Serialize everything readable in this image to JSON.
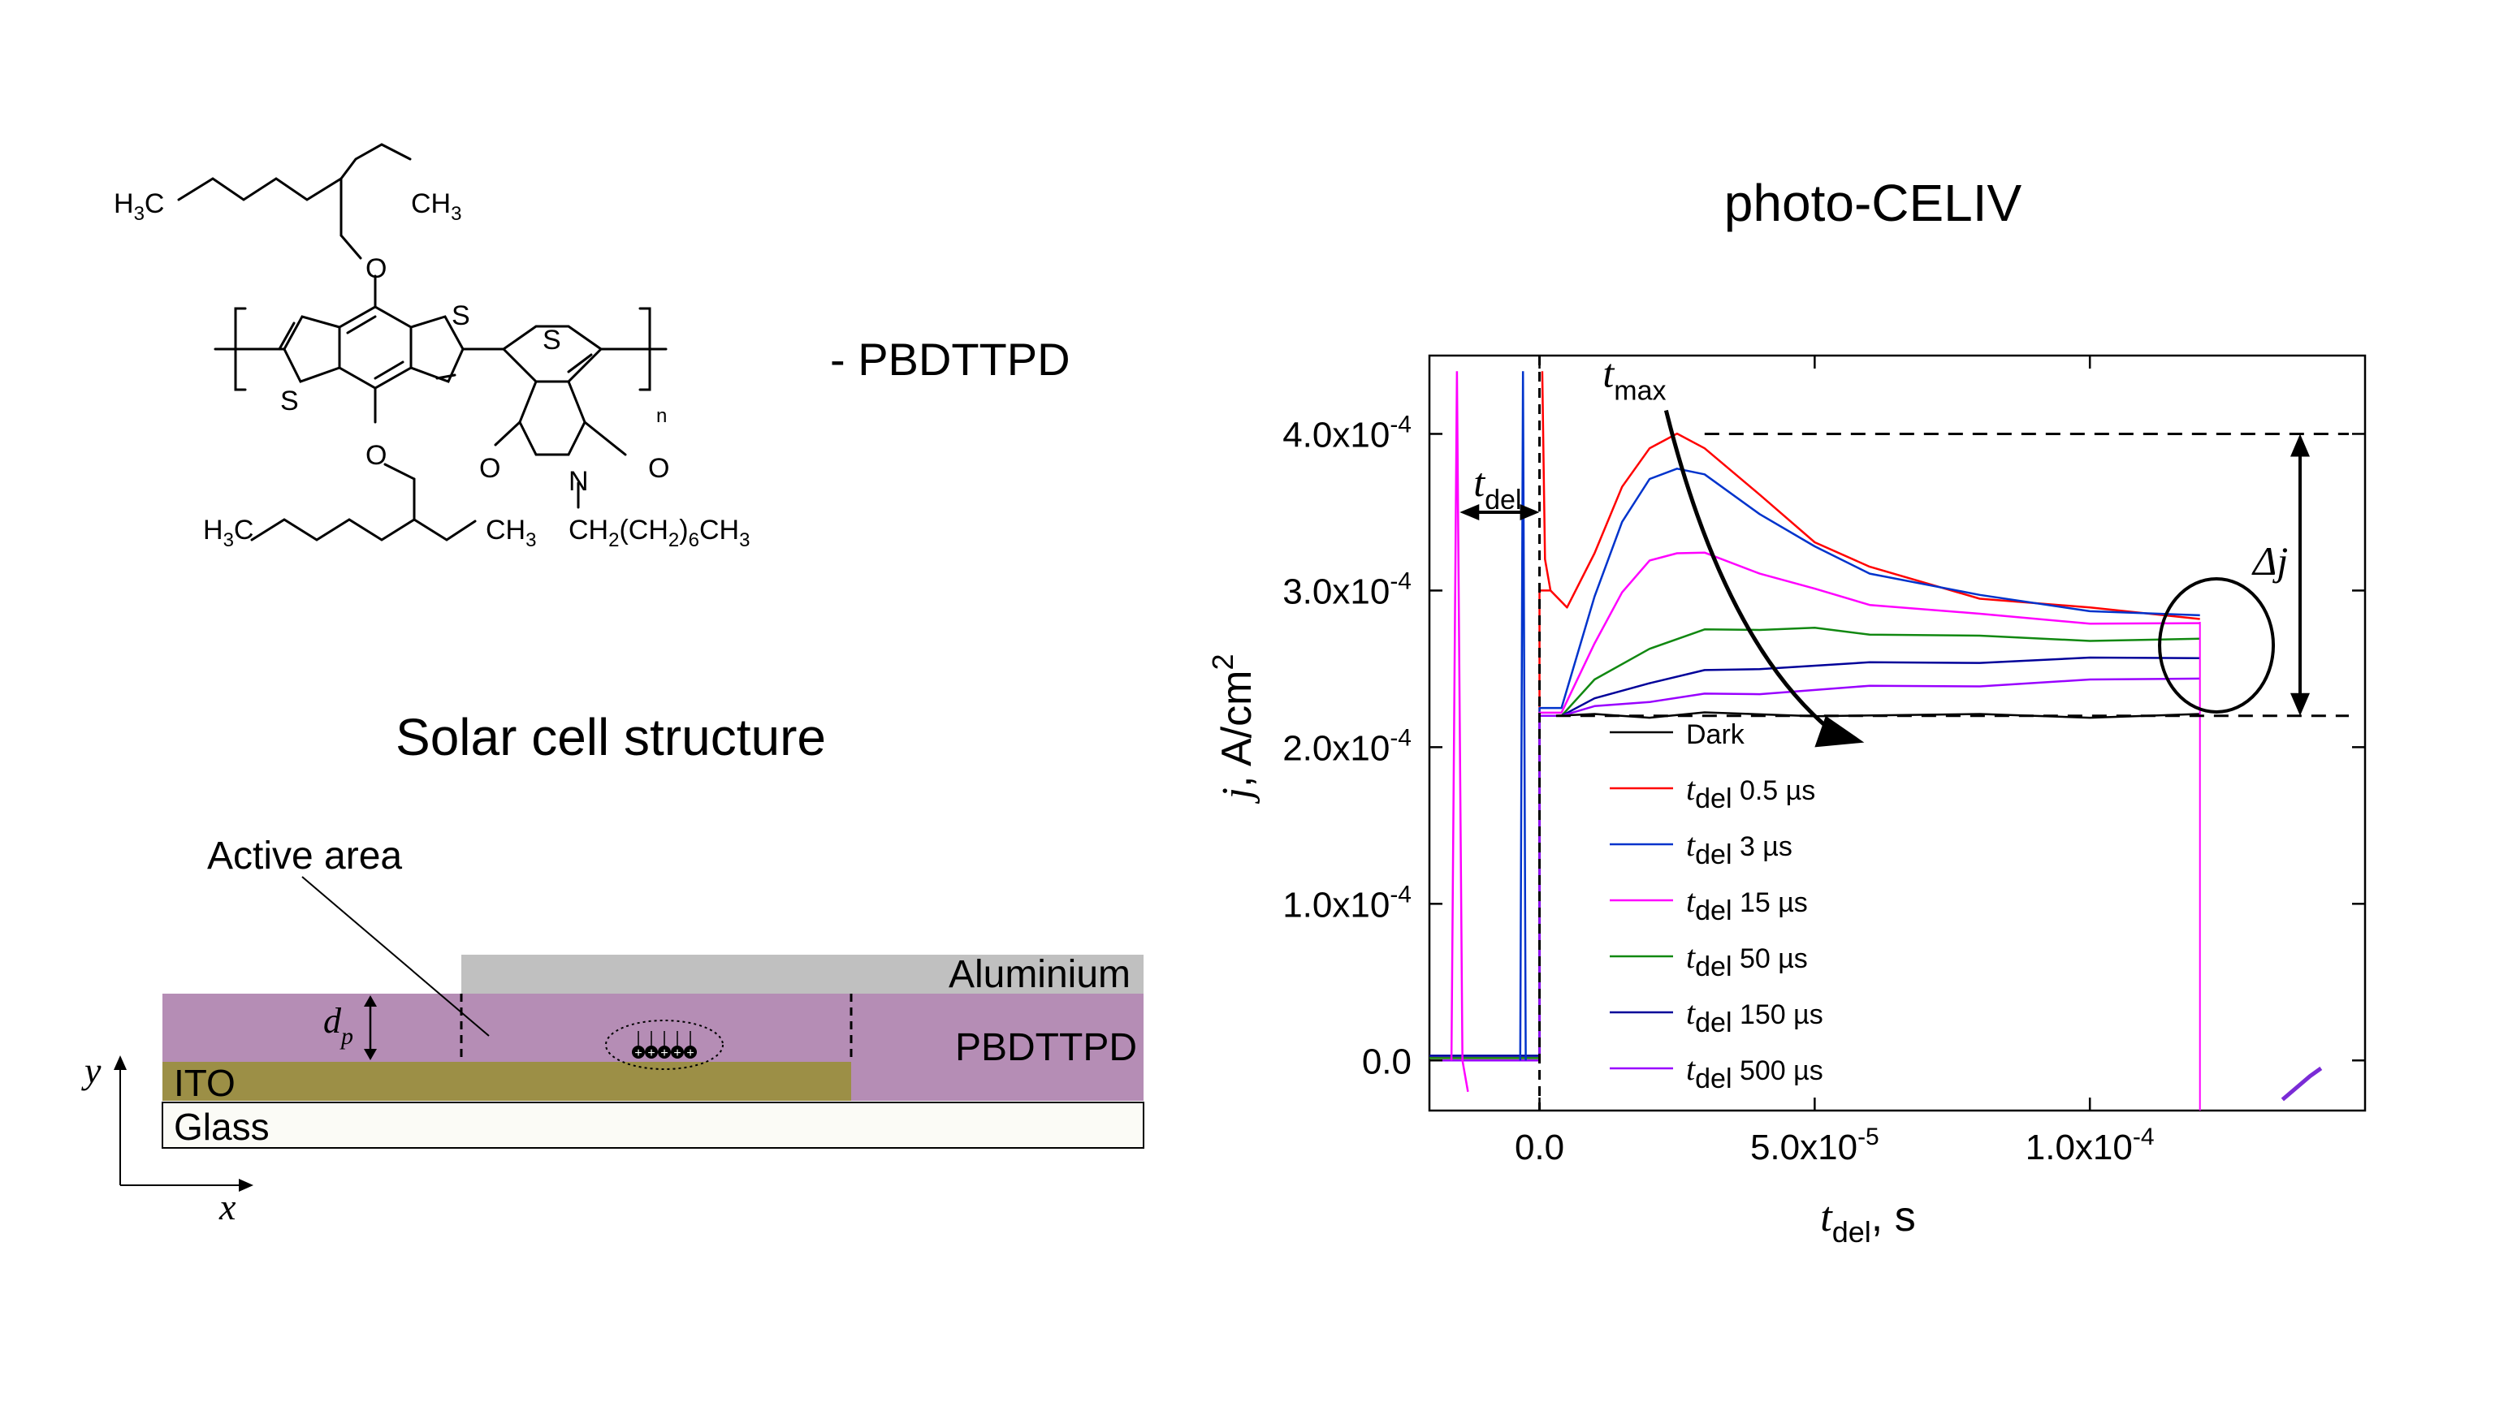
{
  "molecule": {
    "name": "- PBDTTPD",
    "atoms": {
      "o_top": "O",
      "o_bottom": "O",
      "s_right_ring": "S",
      "s_left_ring": "S",
      "s_thiophene": "S",
      "o_imide_left": "O",
      "o_imide_right": "O",
      "n_imide": "N",
      "subscript_n": "n"
    },
    "groups": {
      "top_left": {
        "main": "H",
        "sub": "3",
        "rest": "C"
      },
      "top_right": {
        "main": "CH",
        "sub": "3"
      },
      "bottom_left": {
        "main": "H",
        "sub": "3",
        "rest": "C"
      },
      "bottom_right": {
        "main": "CH",
        "sub": "3"
      },
      "n_chain": {
        "p1": "CH",
        "s1": "2",
        "p2": "(CH",
        "s2": "2",
        "p3": ")",
        "s3": "6",
        "p4": "CH",
        "s4": "3"
      }
    }
  },
  "structure": {
    "title": "Solar cell structure",
    "active_area_label": "Active area",
    "layers": {
      "aluminium": "Aluminium",
      "pbdttpd": "PBDTTPD",
      "ito": "ITO",
      "glass": "Glass"
    },
    "thickness_label": {
      "main": "d",
      "sub": "p"
    },
    "axis_y": "y",
    "axis_x": "x",
    "charges": [
      "+",
      "+",
      "+",
      "+",
      "+"
    ],
    "colors": {
      "aluminium": "#c0c0c0",
      "pbdttpd": "#b58db5",
      "ito": "#9c8f46",
      "glass": "#fbfbf6"
    }
  },
  "chart_data": {
    "type": "line",
    "title": "photo-CELIV",
    "xlabel": {
      "main": "t",
      "sub": "del",
      "rest": ", s"
    },
    "ylabel": {
      "main": "j",
      "rest": ", A/cm",
      "sup": "2"
    },
    "xlim": [
      -2e-05,
      0.00015
    ],
    "ylim": [
      -3.2e-05,
      0.00045
    ],
    "x_ticks": [
      {
        "value": 0,
        "label": "0.0"
      },
      {
        "value": 5e-05,
        "label": "5.0x10",
        "exp": "-5"
      },
      {
        "value": 0.0001,
        "label": "1.0x10",
        "exp": "-4"
      }
    ],
    "y_ticks": [
      {
        "value": 0,
        "label": "0.0"
      },
      {
        "value": 0.0001,
        "label": "1.0x10",
        "exp": "-4"
      },
      {
        "value": 0.0002,
        "label": "2.0x10",
        "exp": "-4"
      },
      {
        "value": 0.0003,
        "label": "3.0x10",
        "exp": "-4"
      },
      {
        "value": 0.0004,
        "label": "4.0x10",
        "exp": "-4"
      }
    ],
    "grid": false,
    "legend_position": "lower-middle",
    "series": [
      {
        "name": "Dark",
        "legend": {
          "main": "Dark"
        },
        "color": "#000000",
        "x": [
          3e-06,
          1e-05,
          2e-05,
          3e-05,
          5e-05,
          8e-05,
          0.0001,
          0.00012
        ],
        "y": [
          0.00022,
          0.00022,
          0.00022,
          0.000221,
          0.000221,
          0.00022,
          0.00022,
          0.00022
        ]
      },
      {
        "name": "t_del 0.5 µs",
        "legend": {
          "main": "t",
          "sub": "del",
          "rest": " 0.5 µs"
        },
        "color": "#ff0000",
        "x": [
          2e-06,
          5e-06,
          1e-05,
          1.5e-05,
          2e-05,
          2.5e-05,
          3e-05,
          4e-05,
          5e-05,
          6e-05,
          8e-05,
          0.0001,
          0.00012
        ],
        "y": [
          0.0003,
          0.000288,
          0.000325,
          0.000365,
          0.000392,
          0.000399,
          0.000392,
          0.00036,
          0.000332,
          0.000314,
          0.000296,
          0.000288,
          0.000283
        ]
      },
      {
        "name": "t_del 3 µs",
        "legend": {
          "main": "t",
          "sub": "del",
          "rest": " 3 µs"
        },
        "color": "#0033cc",
        "x": [
          4e-06,
          1e-05,
          1.5e-05,
          2e-05,
          2.5e-05,
          3e-05,
          4e-05,
          5e-05,
          6e-05,
          8e-05,
          0.0001,
          0.00012
        ],
        "y": [
          0.000225,
          0.000295,
          0.000345,
          0.00037,
          0.000379,
          0.000373,
          0.00035,
          0.000327,
          0.000312,
          0.000296,
          0.000288,
          0.000283
        ]
      },
      {
        "name": "t_del 15 µs",
        "legend": {
          "main": "t",
          "sub": "del",
          "rest": " 15 µs"
        },
        "color": "#ff00ff",
        "x": [
          4e-06,
          1e-05,
          1.5e-05,
          2e-05,
          2.5e-05,
          3e-05,
          4e-05,
          5e-05,
          6e-05,
          8e-05,
          0.0001,
          0.00012
        ],
        "y": [
          0.000222,
          0.000265,
          0.0003,
          0.000318,
          0.000325,
          0.000323,
          0.000312,
          0.0003,
          0.000292,
          0.000284,
          0.00028,
          0.000278
        ]
      },
      {
        "name": "t_del 50 µs",
        "legend": {
          "main": "t",
          "sub": "del",
          "rest": " 50 µs"
        },
        "color": "#118811",
        "x": [
          4e-06,
          1e-05,
          2e-05,
          3e-05,
          4e-05,
          5e-05,
          6e-05,
          8e-05,
          0.0001,
          0.00012
        ],
        "y": [
          0.00022,
          0.000242,
          0.000264,
          0.000274,
          0.000276,
          0.000275,
          0.000273,
          0.00027,
          0.000269,
          0.000268
        ]
      },
      {
        "name": "t_del 150 µs",
        "legend": {
          "main": "t",
          "sub": "del",
          "rest": " 150 µs"
        },
        "color": "#000099",
        "x": [
          4e-06,
          1e-05,
          2e-05,
          3e-05,
          4e-05,
          6e-05,
          8e-05,
          0.0001,
          0.00012
        ],
        "y": [
          0.00022,
          0.00023,
          0.000242,
          0.000248,
          0.000251,
          0.000253,
          0.000255,
          0.000256,
          0.000258
        ]
      },
      {
        "name": "t_del 500 µs",
        "legend": {
          "main": "t",
          "sub": "del",
          "rest": " 500 µs"
        },
        "color": "#9900ff",
        "x": [
          4e-06,
          1e-05,
          2e-05,
          3e-05,
          4e-05,
          6e-05,
          8e-05,
          0.0001,
          0.00012
        ],
        "y": [
          0.00022,
          0.000225,
          0.00023,
          0.000233,
          0.000235,
          0.000238,
          0.00024,
          0.000242,
          0.000245
        ]
      }
    ],
    "annotations": {
      "t_max": {
        "main": "t",
        "sub": "max"
      },
      "t_del": {
        "main": "t",
        "sub": "del"
      },
      "delta_j": "Δj",
      "delta_j_top_value": 0.0004,
      "delta_j_bottom_value": 0.00022,
      "marker_x": 0,
      "end_x": 0.00012
    }
  }
}
